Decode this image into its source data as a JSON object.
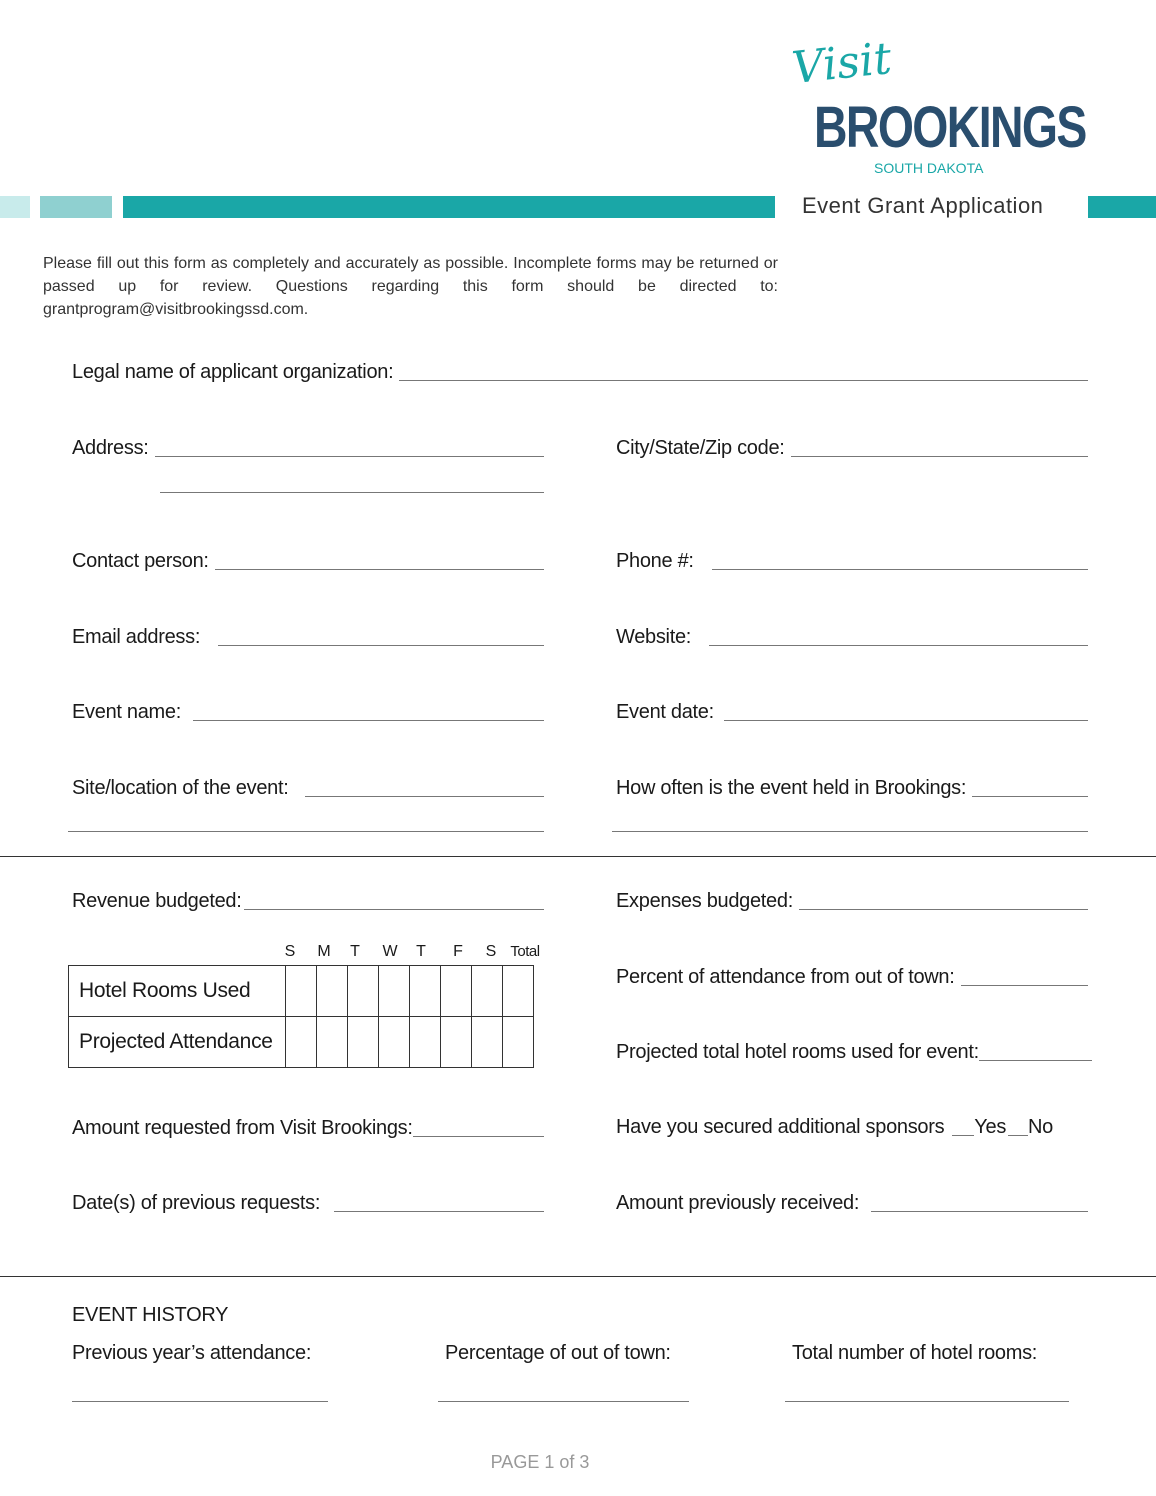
{
  "logo": {
    "script": "Visit",
    "name": "BROOKINGS",
    "region": "SOUTH DAKOTA"
  },
  "colors": {
    "teal": "#1aa7a7",
    "navy": "#2a4e6e",
    "light_teal": "#c8ebeb",
    "mid_teal": "#8fd0d0"
  },
  "doc_title": "Event Grant Application",
  "intro": "Please fill out this form as completely and accurately as possible.  Incomplete forms may be returned or passed up for review.  Questions regarding this form should be directed to: grantprogram@visitbrookingssd.com.",
  "fields": {
    "legal_name": "Legal name of applicant organization:",
    "address": "Address:",
    "city": "City/State/Zip code:",
    "contact": "Contact person:",
    "phone": "Phone #:",
    "email": "Email address:",
    "website": "Website:",
    "event_name": "Event name:",
    "event_date": "Event date:",
    "site": "Site/location of the event:",
    "how_often": "How often is the event held in Brookings:",
    "revenue": "Revenue budgeted:",
    "expenses": "Expenses budgeted:",
    "percent_out": "Percent of attendance from out of town:",
    "projected_rooms": "Projected total hotel rooms used for event:",
    "amount_requested": "Amount requested from Visit Brookings:",
    "sponsors": "Have you secured additional sponsors",
    "yes": "Yes",
    "no": "No",
    "prev_dates": "Date(s) of previous requests:",
    "prev_amount": "Amount previously  received:"
  },
  "table": {
    "days": [
      "S",
      "M",
      "T",
      "W",
      "T",
      "F",
      "S",
      "Total"
    ],
    "rows": [
      "Hotel Rooms Used",
      "Projected Attendance"
    ]
  },
  "history": {
    "heading": "EVENT HISTORY",
    "prev_attendance": "Previous year’s attendance:",
    "pct_out": "Percentage of out of town:",
    "hotel_rooms": "Total number of hotel rooms:"
  },
  "footer": {
    "page": "PAGE 1 of 3"
  }
}
